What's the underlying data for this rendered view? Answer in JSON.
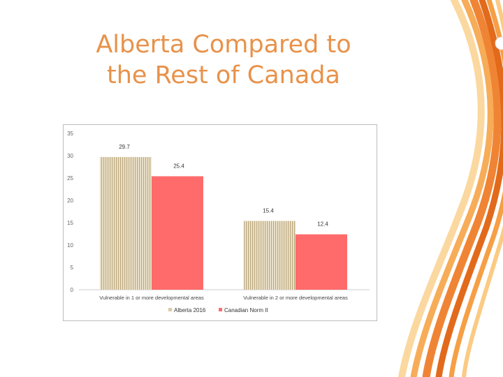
{
  "slide": {
    "title_line1": "Alberta Compared to",
    "title_line2": "the Rest of Canada"
  },
  "colors": {
    "title": "#e8924a",
    "alberta": "#d9c9a3",
    "alberta_stripe": "#bba77c",
    "canada": "#ff6b6b",
    "axis": "#999999",
    "decor_dark": "#e0620f",
    "decor_light": "#fbc77c"
  },
  "chart_data": {
    "type": "bar",
    "categories": [
      "Vulnerable in 1 or more developmental areas",
      "Vulnerable in 2 or more developmental areas"
    ],
    "series": [
      {
        "name": "Alberta 2016",
        "values": [
          29.7,
          15.4
        ],
        "labels": [
          "29.7",
          "15.4"
        ]
      },
      {
        "name": "Canadian Norm II",
        "values": [
          25.4,
          12.4
        ],
        "labels": [
          "25.4",
          "12.4"
        ]
      }
    ],
    "ylim": [
      0,
      35
    ],
    "yticks": [
      0,
      5,
      10,
      15,
      20,
      25,
      30,
      35
    ],
    "grid": false,
    "legend": "bottom"
  }
}
